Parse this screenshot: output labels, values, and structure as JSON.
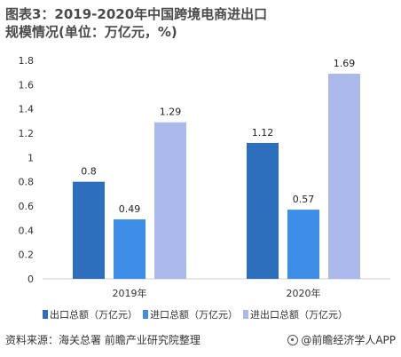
{
  "title": "图表3：2019-2020年中国跨境电商进出口规模情况(单位：万亿元，%)",
  "chart_data": {
    "type": "bar",
    "categories": [
      "2019年",
      "2020年"
    ],
    "series": [
      {
        "name": "出口总额（万亿元）",
        "values": [
          0.8,
          1.12
        ],
        "labels": [
          "0.8",
          "1.12"
        ],
        "color": "#2e6fbd"
      },
      {
        "name": "进口总额（万亿元）",
        "values": [
          0.49,
          0.57
        ],
        "labels": [
          "0.49",
          "0.57"
        ],
        "color": "#3d8ee6"
      },
      {
        "name": "进出口总额（万亿元）",
        "values": [
          1.29,
          1.69
        ],
        "labels": [
          "1.29",
          "1.69"
        ],
        "color": "#aab9ea"
      }
    ],
    "yticks": [
      "0",
      "0.2",
      "0.4",
      "0.6",
      "0.8",
      "1",
      "1.2",
      "1.4",
      "1.6",
      "1.8"
    ],
    "ylim": [
      0,
      1.8
    ],
    "legend_position": "bottom",
    "grid": false
  },
  "footer": {
    "source": "资料来源：海关总署 前瞻产业研究院整理",
    "brand": "@前瞻经济学人APP"
  }
}
